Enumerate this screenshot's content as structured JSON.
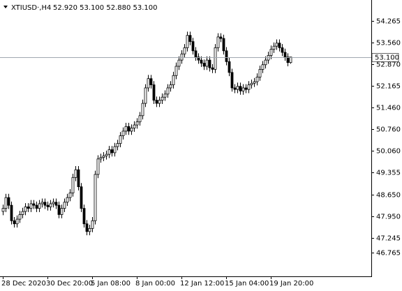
{
  "chart_data": {
    "type": "candlestick",
    "title": "XTIUSD·,H4",
    "subtitle": "52.920 53.100 52.880 53.100",
    "up_color": "#ffffff",
    "down_color": "#000000",
    "outline_color": "#000000",
    "categories": [
      "28 Dec 2020",
      null,
      null,
      null,
      null,
      null,
      null,
      null,
      null,
      null,
      null,
      null,
      null,
      null,
      null,
      null,
      "30 Dec 20:00",
      null,
      null,
      null,
      null,
      null,
      null,
      null,
      null,
      null,
      null,
      null,
      null,
      null,
      null,
      null,
      "5 Jan 08:00",
      null,
      null,
      null,
      null,
      null,
      null,
      null,
      null,
      null,
      null,
      null,
      null,
      null,
      null,
      null,
      "8 Jan 00:00",
      null,
      null,
      null,
      null,
      null,
      null,
      null,
      null,
      null,
      null,
      null,
      null,
      null,
      null,
      null,
      "12 Jan 12:00",
      null,
      null,
      null,
      null,
      null,
      null,
      null,
      null,
      null,
      null,
      null,
      null,
      null,
      null,
      null,
      "15 Jan 04:00",
      null,
      null,
      null,
      null,
      null,
      null,
      null,
      null,
      null,
      null,
      null,
      null,
      null,
      null,
      null,
      "19 Jan 20:00",
      null,
      null,
      null,
      null,
      null,
      null,
      null
    ],
    "open": [
      48.1,
      48.2,
      48.55,
      48.3,
      47.8,
      47.7,
      47.85,
      48.0,
      48.1,
      48.25,
      48.2,
      48.35,
      48.3,
      48.2,
      48.35,
      48.4,
      48.3,
      48.25,
      48.35,
      48.4,
      48.3,
      48.0,
      48.2,
      48.4,
      48.55,
      48.7,
      49.2,
      49.45,
      48.9,
      48.2,
      47.7,
      47.45,
      47.55,
      47.8,
      49.3,
      49.8,
      49.85,
      49.9,
      49.95,
      50.1,
      50.0,
      50.2,
      50.3,
      50.55,
      50.7,
      50.85,
      50.7,
      50.8,
      50.9,
      51.0,
      51.2,
      51.6,
      52.1,
      52.4,
      52.2,
      51.7,
      51.6,
      51.7,
      51.8,
      51.9,
      52.1,
      52.2,
      52.5,
      52.8,
      53.0,
      53.2,
      53.4,
      53.8,
      53.6,
      53.3,
      53.1,
      53.0,
      52.9,
      52.8,
      53.0,
      52.75,
      52.7,
      53.4,
      53.75,
      53.7,
      53.3,
      52.95,
      52.6,
      52.1,
      52.05,
      52.15,
      52.0,
      52.1,
      52.05,
      52.2,
      52.25,
      52.3,
      52.45,
      52.7,
      52.85,
      53.0,
      53.15,
      53.35,
      53.45,
      53.55,
      53.4,
      53.25,
      53.1,
      52.92
    ],
    "high": [
      48.32,
      48.67,
      48.67,
      48.42,
      47.92,
      47.97,
      48.12,
      48.22,
      48.37,
      48.37,
      48.47,
      48.47,
      48.42,
      48.47,
      48.52,
      48.52,
      48.42,
      48.47,
      48.52,
      48.52,
      48.42,
      48.32,
      48.52,
      48.67,
      48.82,
      49.32,
      49.57,
      49.57,
      49.02,
      48.32,
      47.82,
      47.67,
      47.92,
      49.42,
      49.92,
      49.97,
      50.02,
      50.07,
      50.22,
      50.22,
      50.32,
      50.42,
      50.67,
      50.82,
      50.97,
      50.97,
      50.92,
      51.02,
      51.12,
      51.32,
      51.72,
      52.22,
      52.52,
      52.52,
      52.32,
      51.82,
      51.82,
      51.92,
      52.02,
      52.22,
      52.32,
      52.62,
      52.92,
      53.12,
      53.32,
      53.52,
      53.92,
      53.92,
      53.72,
      53.42,
      53.22,
      53.12,
      53.02,
      53.12,
      53.12,
      52.87,
      53.52,
      53.87,
      53.87,
      53.82,
      53.42,
      53.07,
      52.72,
      52.22,
      52.27,
      52.27,
      52.22,
      52.22,
      52.32,
      52.37,
      52.42,
      52.57,
      52.82,
      52.97,
      53.12,
      53.27,
      53.47,
      53.57,
      53.67,
      53.67,
      53.52,
      53.37,
      53.22,
      53.1
    ],
    "low": [
      47.98,
      48.08,
      48.18,
      47.68,
      47.58,
      47.58,
      47.73,
      47.88,
      47.98,
      48.08,
      48.08,
      48.18,
      48.08,
      48.08,
      48.23,
      48.18,
      48.13,
      48.13,
      48.23,
      48.18,
      47.88,
      47.88,
      48.08,
      48.28,
      48.43,
      48.58,
      49.08,
      48.78,
      48.08,
      47.58,
      47.33,
      47.33,
      47.43,
      47.68,
      49.18,
      49.68,
      49.73,
      49.78,
      49.83,
      49.88,
      49.88,
      50.08,
      50.18,
      50.43,
      50.58,
      50.58,
      50.58,
      50.68,
      50.78,
      50.88,
      51.08,
      51.48,
      51.98,
      52.08,
      51.58,
      51.48,
      51.48,
      51.58,
      51.68,
      51.78,
      51.98,
      52.08,
      52.38,
      52.68,
      52.88,
      53.08,
      53.28,
      53.48,
      53.18,
      52.98,
      52.88,
      52.78,
      52.68,
      52.68,
      52.63,
      52.58,
      52.58,
      53.28,
      53.58,
      53.18,
      52.83,
      52.48,
      51.98,
      51.93,
      51.93,
      51.88,
      51.88,
      51.93,
      51.93,
      52.08,
      52.13,
      52.18,
      52.33,
      52.58,
      52.73,
      52.88,
      53.03,
      53.23,
      53.33,
      53.28,
      53.13,
      52.98,
      52.8,
      52.88
    ],
    "close": [
      48.2,
      48.55,
      48.3,
      47.8,
      47.7,
      47.85,
      48.0,
      48.1,
      48.25,
      48.2,
      48.35,
      48.3,
      48.2,
      48.35,
      48.4,
      48.3,
      48.25,
      48.35,
      48.4,
      48.3,
      48.0,
      48.2,
      48.4,
      48.55,
      48.7,
      49.2,
      49.45,
      48.9,
      48.2,
      47.7,
      47.45,
      47.55,
      47.8,
      49.3,
      49.8,
      49.85,
      49.9,
      49.95,
      50.1,
      50.0,
      50.2,
      50.3,
      50.55,
      50.7,
      50.85,
      50.7,
      50.8,
      50.9,
      51.0,
      51.2,
      51.6,
      52.1,
      52.4,
      52.2,
      51.7,
      51.6,
      51.7,
      51.8,
      51.9,
      52.1,
      52.2,
      52.5,
      52.8,
      53.0,
      53.2,
      53.4,
      53.8,
      53.6,
      53.3,
      53.1,
      53.0,
      52.9,
      52.8,
      53.0,
      52.75,
      52.7,
      53.4,
      53.75,
      53.7,
      53.3,
      52.95,
      52.6,
      52.1,
      52.05,
      52.15,
      52.0,
      52.1,
      52.05,
      52.2,
      52.25,
      52.3,
      52.45,
      52.7,
      52.85,
      53.0,
      53.15,
      53.35,
      53.45,
      53.55,
      53.4,
      53.25,
      53.1,
      52.92,
      53.1
    ],
    "ylim": [
      46.0,
      54.9
    ],
    "yticks": [
      54.265,
      {
        "value": 53.56,
        "label": "53.560"
      },
      {
        "value": 52.87,
        "label": "52.870"
      },
      52.165,
      {
        "value": 51.46,
        "label": "51.460"
      },
      {
        "value": 50.76,
        "label": "50.760"
      },
      {
        "value": 50.06,
        "label": "50.060"
      },
      49.355,
      {
        "value": 48.65,
        "label": "48.650"
      },
      {
        "value": 47.95,
        "label": "47.950"
      },
      47.245,
      46.765
    ],
    "price_line": {
      "value": 53.1,
      "label": "53.100"
    },
    "price_line_color": "#a0a8b0",
    "grid": false
  }
}
